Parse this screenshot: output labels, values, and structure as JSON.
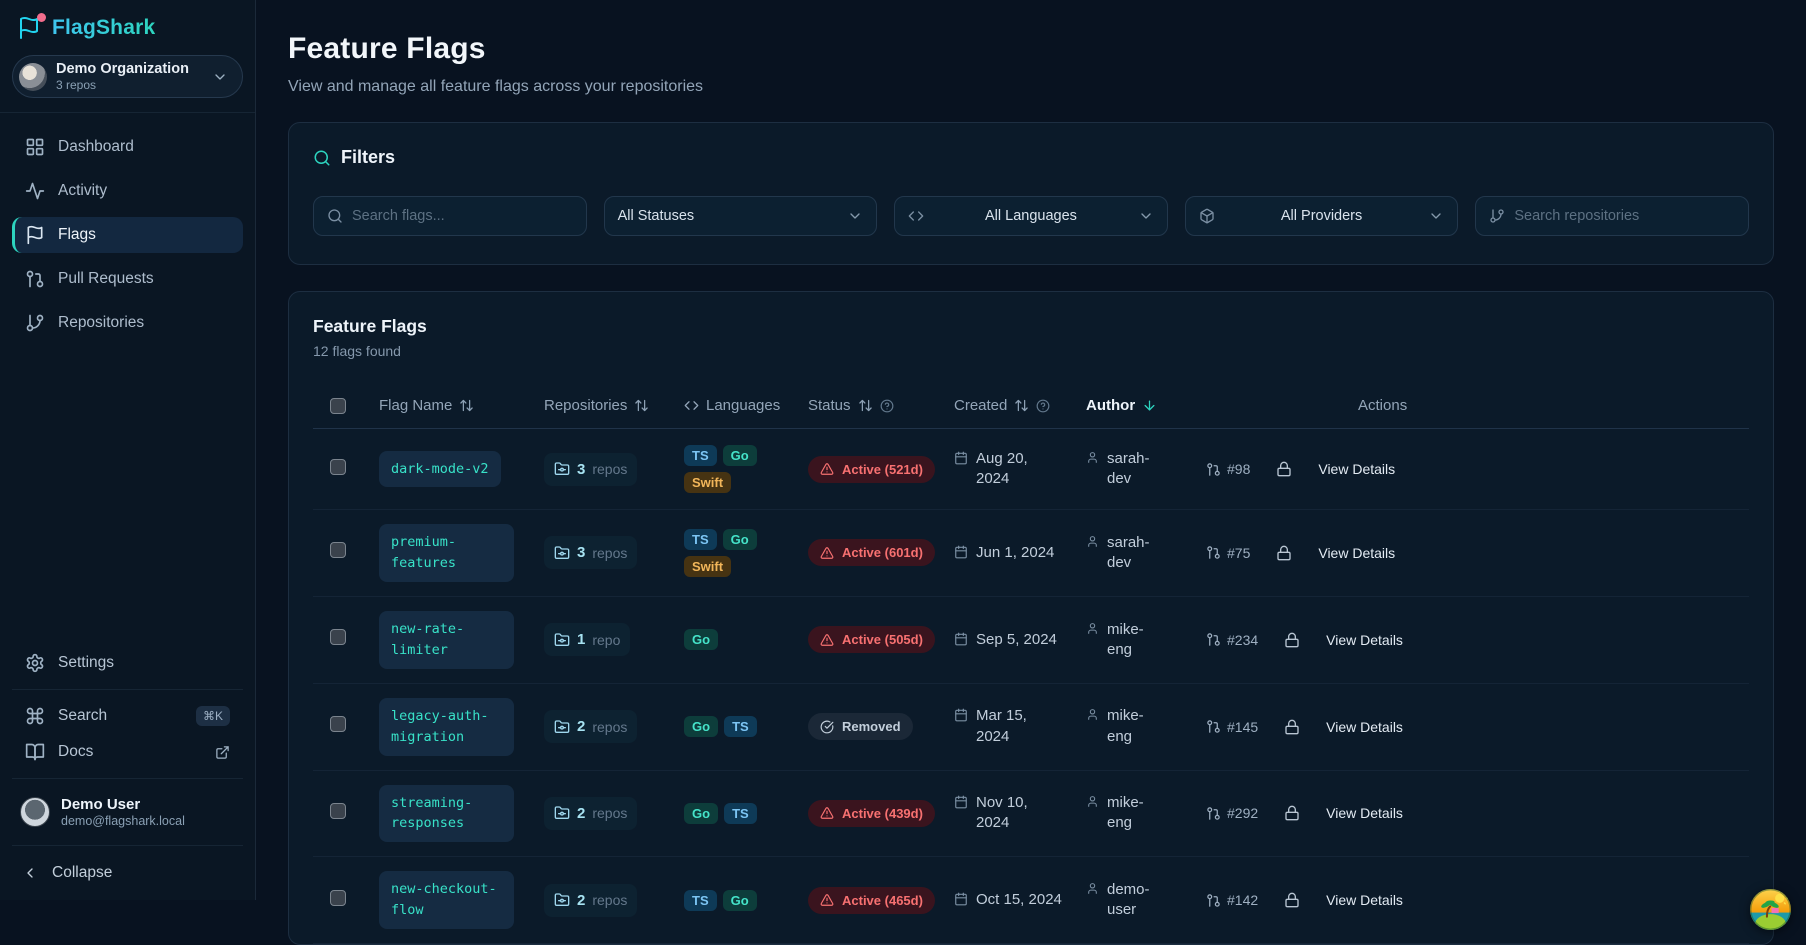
{
  "palette": {
    "accent_teal": "#2dd4bf",
    "accent_cyan": "#22d3ee",
    "status_active_text": "#f87171",
    "status_removed_text": "#c3cfdb",
    "badge_ts_text": "#7cc5f4",
    "badge_go_text": "#45e3c9",
    "badge_swift_text": "#f2b65a"
  },
  "sidebar": {
    "brand": "FlagShark",
    "org": {
      "name": "Demo Organization",
      "meta": "3 repos"
    },
    "nav": [
      {
        "label": "Dashboard",
        "active": false
      },
      {
        "label": "Activity",
        "active": false
      },
      {
        "label": "Flags",
        "active": true
      },
      {
        "label": "Pull Requests",
        "active": false
      },
      {
        "label": "Repositories",
        "active": false
      }
    ],
    "settings_label": "Settings",
    "search_label": "Search",
    "search_shortcut": "⌘K",
    "docs_label": "Docs",
    "user": {
      "name": "Demo User",
      "email": "demo@flagshark.local"
    },
    "collapse_label": "Collapse"
  },
  "page": {
    "title": "Feature Flags",
    "subtitle": "View and manage all feature flags across your repositories"
  },
  "filters": {
    "title": "Filters",
    "flag_search_placeholder": "Search flags...",
    "status_value": "All Statuses",
    "language_value": "All Languages",
    "provider_value": "All Providers",
    "repo_search_placeholder": "Search repositories"
  },
  "table": {
    "title": "Feature Flags",
    "count": "12 flags found",
    "headers": {
      "flag": "Flag Name",
      "repos": "Repositories",
      "languages": "Languages",
      "status": "Status",
      "created": "Created",
      "author": "Author",
      "actions": "Actions"
    },
    "view_details": "View Details",
    "rows": [
      {
        "name": "dark-mode-v2",
        "repos_count": "3",
        "repos_label": "repos",
        "languages": [
          "TS",
          "Go",
          "Swift"
        ],
        "status": "Active (521d)",
        "status_type": "active",
        "created": "Aug 20, 2024",
        "author": "sarah-dev",
        "pr": "#98"
      },
      {
        "name": "premium-features",
        "repos_count": "3",
        "repos_label": "repos",
        "languages": [
          "TS",
          "Go",
          "Swift"
        ],
        "status": "Active (601d)",
        "status_type": "active",
        "created": "Jun 1, 2024",
        "author": "sarah-dev",
        "pr": "#75"
      },
      {
        "name": "new-rate-limiter",
        "repos_count": "1",
        "repos_label": "repo",
        "languages": [
          "Go"
        ],
        "status": "Active (505d)",
        "status_type": "active",
        "created": "Sep 5, 2024",
        "author": "mike-eng",
        "pr": "#234"
      },
      {
        "name": "legacy-auth-migration",
        "repos_count": "2",
        "repos_label": "repos",
        "languages": [
          "Go",
          "TS"
        ],
        "status": "Removed",
        "status_type": "removed",
        "created": "Mar 15, 2024",
        "author": "mike-eng",
        "pr": "#145"
      },
      {
        "name": "streaming-responses",
        "repos_count": "2",
        "repos_label": "repos",
        "languages": [
          "Go",
          "TS"
        ],
        "status": "Active (439d)",
        "status_type": "active",
        "created": "Nov 10, 2024",
        "author": "mike-eng",
        "pr": "#292"
      },
      {
        "name": "new-checkout-flow",
        "repos_count": "2",
        "repos_label": "repos",
        "languages": [
          "TS",
          "Go"
        ],
        "status": "Active (465d)",
        "status_type": "active",
        "created": "Oct 15, 2024",
        "author": "demo-user",
        "pr": "#142"
      }
    ]
  }
}
